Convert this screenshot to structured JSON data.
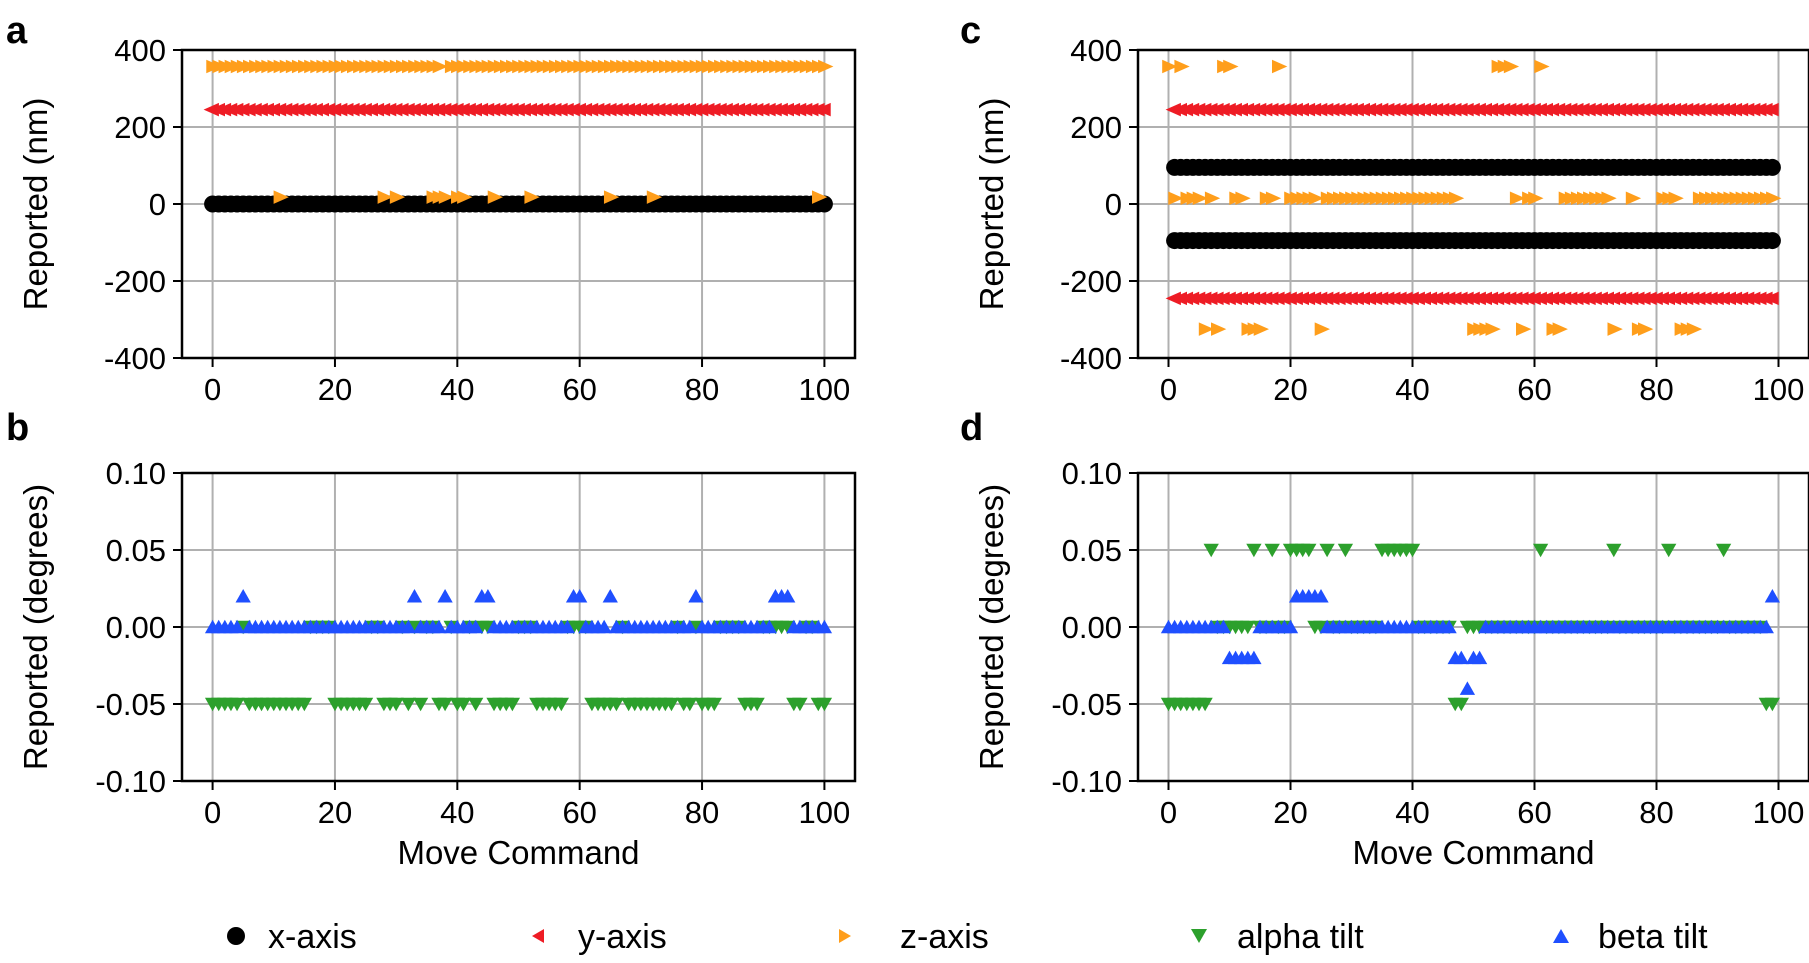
{
  "colors": {
    "x_axis": "#000000",
    "y_axis": "#ee1c25",
    "z_axis": "#ff9e1b",
    "alpha_tilt": "#2ca02c",
    "beta_tilt": "#1f4fff",
    "grid": "#b0b0b0"
  },
  "legend": [
    {
      "key": "x_axis",
      "label": "x-axis",
      "marker": "circle"
    },
    {
      "key": "y_axis",
      "label": "y-axis",
      "marker": "triangle-left"
    },
    {
      "key": "z_axis",
      "label": "z-axis",
      "marker": "triangle-right"
    },
    {
      "key": "alpha_tilt",
      "label": "alpha tilt",
      "marker": "triangle-down"
    },
    {
      "key": "beta_tilt",
      "label": "beta tilt",
      "marker": "triangle-up"
    }
  ],
  "chart_data": [
    {
      "id": "a",
      "panel_label": "a",
      "type": "scatter",
      "xlabel": "",
      "ylabel": "Reported (nm)",
      "xlim": [
        -5,
        105
      ],
      "ylim": [
        -400,
        400
      ],
      "xticks": [
        0,
        20,
        40,
        60,
        80,
        100
      ],
      "yticks": [
        -400,
        -200,
        0,
        200,
        400
      ],
      "xtick_labels": [
        "0",
        "20",
        "40",
        "60",
        "80",
        "100"
      ],
      "ytick_labels": [
        "-400",
        "-200",
        "0",
        "200",
        "400"
      ],
      "grid": true,
      "series": [
        {
          "name": "x-axis",
          "key": "x_axis",
          "marker": "circle",
          "points": [
            {
              "x_from": 0,
              "x_to": 100,
              "y": 0
            }
          ]
        },
        {
          "name": "y-axis",
          "key": "y_axis",
          "marker": "triangle-left",
          "points": [
            {
              "x_from": 0,
              "x_to": 100,
              "y": 245
            }
          ]
        },
        {
          "name": "z-axis",
          "key": "z_axis",
          "marker": "triangle-right",
          "points": [
            {
              "x_from": 0,
              "x_to": 38,
              "y": 357
            },
            {
              "x_from": 39,
              "x_to": 100,
              "y": 357
            }
          ],
          "offsets": {
            "y": 18,
            "x": [
              11,
              28,
              30,
              36,
              37,
              38,
              40,
              41,
              46,
              52,
              65,
              72,
              99
            ]
          }
        }
      ]
    },
    {
      "id": "b",
      "panel_label": "b",
      "type": "scatter",
      "xlabel": "Move Command",
      "ylabel": "Reported (degrees)",
      "xlim": [
        -5,
        105
      ],
      "ylim": [
        -0.1,
        0.1
      ],
      "xticks": [
        0,
        20,
        40,
        60,
        80,
        100
      ],
      "yticks": [
        -0.1,
        -0.05,
        0,
        0.05,
        0.1
      ],
      "xtick_labels": [
        "0",
        "20",
        "40",
        "60",
        "80",
        "100"
      ],
      "ytick_labels": [
        "-0.10",
        "-0.05",
        "0.00",
        "0.05",
        "0.10"
      ],
      "grid": true,
      "series": [
        {
          "name": "alpha tilt",
          "key": "alpha_tilt",
          "marker": "triangle-down",
          "y_low": -0.05,
          "y_high": 0.0,
          "high_x": [
            5,
            16,
            17,
            18,
            19,
            26,
            27,
            31,
            33,
            35,
            36,
            39,
            42,
            44,
            45,
            50,
            51,
            52,
            58,
            59,
            60,
            61,
            67,
            76,
            79,
            83,
            84,
            85,
            86,
            90,
            91,
            92,
            93,
            94,
            97,
            98
          ]
        },
        {
          "name": "beta tilt",
          "key": "beta_tilt",
          "marker": "triangle-up",
          "base_y": 0.0,
          "high_y": 0.02,
          "high_x": [
            5,
            33,
            38,
            44,
            45,
            59,
            60,
            65,
            79,
            92,
            93,
            94
          ]
        }
      ]
    },
    {
      "id": "c",
      "panel_label": "c",
      "type": "scatter",
      "xlabel": "",
      "ylabel": "Reported (nm)",
      "xlim": [
        -5,
        105
      ],
      "ylim": [
        -400,
        400
      ],
      "xticks": [
        0,
        20,
        40,
        60,
        80,
        100
      ],
      "yticks": [
        -400,
        -200,
        0,
        200,
        400
      ],
      "xtick_labels": [
        "0",
        "20",
        "40",
        "60",
        "80",
        "100"
      ],
      "ytick_labels": [
        "-400",
        "-200",
        "0",
        "200",
        "400"
      ],
      "grid": true,
      "series": [
        {
          "name": "x-axis",
          "key": "x_axis",
          "marker": "circle",
          "levels": [
            95,
            -95
          ],
          "x_from": 1,
          "x_to": 99
        },
        {
          "name": "y-axis",
          "key": "y_axis",
          "marker": "triangle-left",
          "levels": [
            245,
            -245
          ],
          "x_from": 1,
          "x_to": 99
        },
        {
          "name": "z-axis",
          "key": "z_axis",
          "marker": "triangle-right",
          "level_values": [
            357,
            15,
            -325
          ],
          "high_x": [
            0,
            2,
            9,
            10,
            18,
            54,
            55,
            56,
            61
          ],
          "low_x": [
            6,
            8,
            13,
            14,
            15,
            25,
            50,
            51,
            52,
            53,
            58,
            63,
            64,
            73,
            77,
            78,
            84,
            85,
            86
          ],
          "mid_gaps": [
            19,
            48,
            49,
            50,
            51,
            52,
            53,
            55,
            56,
            62,
            74,
            75,
            79,
            80
          ]
        }
      ]
    },
    {
      "id": "d",
      "panel_label": "d",
      "type": "scatter",
      "xlabel": "Move Command",
      "ylabel": "Reported (degrees)",
      "xlim": [
        -5,
        105
      ],
      "ylim": [
        -0.1,
        0.1
      ],
      "xticks": [
        0,
        20,
        40,
        60,
        80,
        100
      ],
      "yticks": [
        -0.1,
        -0.05,
        0,
        0.05,
        0.1
      ],
      "xtick_labels": [
        "0",
        "20",
        "40",
        "60",
        "80",
        "100"
      ],
      "ytick_labels": [
        "-0.10",
        "-0.05",
        "0.00",
        "0.05",
        "0.10"
      ],
      "grid": true,
      "series": [
        {
          "name": "alpha tilt",
          "key": "alpha_tilt",
          "marker": "triangle-down",
          "y_low": -0.05,
          "y_mid": 0.0,
          "y_high": 0.05,
          "low_x": [
            0,
            1,
            2,
            3,
            4,
            5,
            6,
            47,
            48,
            98,
            99
          ],
          "high_x": [
            7,
            14,
            17,
            20,
            21,
            22,
            23,
            26,
            29,
            35,
            36,
            37,
            38,
            39,
            40,
            61,
            73,
            82,
            91
          ]
        },
        {
          "name": "beta tilt",
          "key": "beta_tilt",
          "marker": "triangle-up",
          "base_y": 0.0,
          "pos_x": [
            21,
            22,
            23,
            24,
            25,
            99
          ],
          "neg_x": [
            10,
            11,
            12,
            13,
            14,
            47,
            48,
            50,
            51
          ],
          "neg2_x": [
            49
          ]
        }
      ]
    }
  ]
}
